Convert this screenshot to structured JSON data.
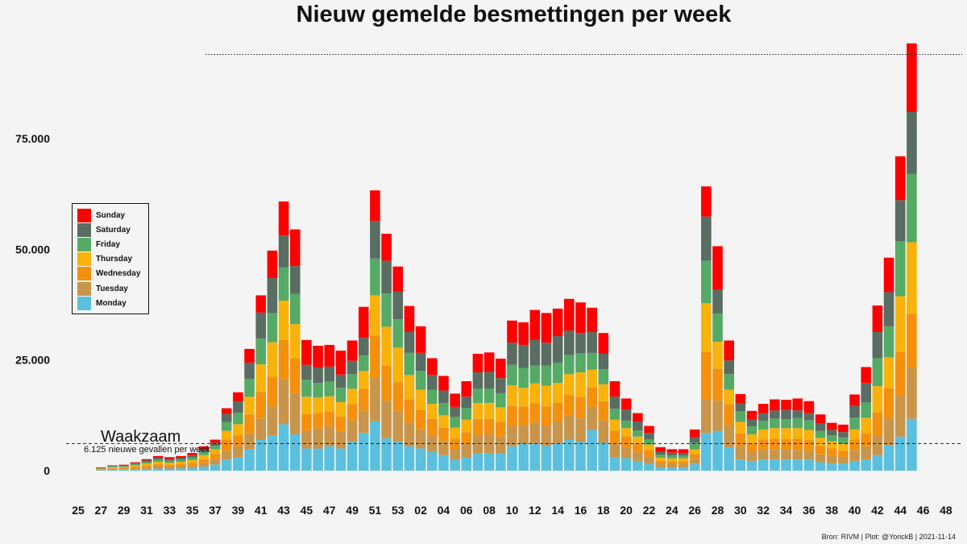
{
  "title": "Nieuw gemelde besmettingen per week",
  "caption": "Bron: RIVM | Plot: @YorickB |  2021-11-14",
  "threshold": {
    "label": "Waakzaam",
    "sublabel": "6.125 nieuwe gevallen per week",
    "value": 6125
  },
  "chart_data": {
    "type": "bar",
    "stacked": true,
    "title": "Nieuw gemelde besmettingen per week",
    "xlabel": "",
    "ylabel": "",
    "ylim": [
      0,
      94000
    ],
    "yticks": [
      0,
      25000,
      50000,
      75000
    ],
    "ytick_labels": [
      "0",
      "25.000",
      "50.000",
      "75.000"
    ],
    "xticks": [
      "25",
      "27",
      "29",
      "31",
      "33",
      "35",
      "37",
      "39",
      "41",
      "43",
      "45",
      "47",
      "49",
      "51",
      "53",
      "02",
      "04",
      "06",
      "08",
      "10",
      "12",
      "14",
      "16",
      "18",
      "20",
      "22",
      "24",
      "26",
      "28",
      "30",
      "32",
      "34",
      "36",
      "38",
      "40",
      "42",
      "44",
      "46",
      "48"
    ],
    "grid": false,
    "legend_position": "left",
    "reference_lines": [
      {
        "value": 6125,
        "style": "dashed",
        "label": "Waakzaam"
      },
      {
        "value": 94000,
        "style": "dotted"
      }
    ],
    "categories": [
      "27",
      "28",
      "29",
      "30",
      "31",
      "32",
      "33",
      "34",
      "35",
      "36",
      "37",
      "38",
      "39",
      "40",
      "41",
      "42",
      "43",
      "44",
      "45",
      "46",
      "47",
      "48",
      "49",
      "50",
      "51",
      "52",
      "53",
      "01",
      "02",
      "03",
      "04",
      "05",
      "06",
      "07",
      "08",
      "09",
      "10",
      "11",
      "12",
      "13",
      "14",
      "15",
      "16",
      "17",
      "18",
      "19",
      "20",
      "21",
      "22",
      "23",
      "24",
      "25",
      "26",
      "27",
      "28",
      "29",
      "30",
      "31",
      "32",
      "33",
      "34",
      "35",
      "36",
      "37",
      "38",
      "39",
      "40",
      "41",
      "42",
      "43",
      "44",
      "45"
    ],
    "series": [
      {
        "name": "Monday",
        "color": "#5bc0de",
        "values": [
          100,
          200,
          220,
          300,
          400,
          500,
          450,
          500,
          600,
          900,
          1400,
          2500,
          3000,
          4800,
          7000,
          8000,
          10500,
          8200,
          5000,
          5000,
          5500,
          5000,
          6500,
          8500,
          11200,
          7300,
          6500,
          5500,
          5000,
          4200,
          3500,
          2400,
          3000,
          4000,
          4000,
          4000,
          5500,
          6000,
          6000,
          5600,
          6200,
          7000,
          6500,
          9200,
          6300,
          3000,
          2800,
          2200,
          1500,
          700,
          700,
          700,
          1500,
          8500,
          9000,
          5200,
          2500,
          2200,
          2500,
          2500,
          2500,
          2500,
          2400,
          1900,
          1600,
          1600,
          2200,
          2500,
          3500,
          5800,
          7700,
          11700
        ]
      },
      {
        "name": "Tuesday",
        "color": "#c8954a",
        "values": [
          150,
          200,
          220,
          300,
          400,
          500,
          450,
          500,
          600,
          800,
          1200,
          2000,
          2500,
          3700,
          4800,
          6500,
          10200,
          9300,
          4000,
          4500,
          4500,
          3800,
          4800,
          5000,
          9700,
          8500,
          7000,
          5400,
          4300,
          3700,
          3200,
          2500,
          3000,
          4100,
          4200,
          3700,
          4500,
          4300,
          4800,
          4500,
          4900,
          5500,
          5300,
          5200,
          5000,
          3000,
          2500,
          2000,
          1600,
          750,
          750,
          750,
          1200,
          7600,
          6800,
          5000,
          3000,
          2000,
          2200,
          2200,
          2300,
          2200,
          2100,
          1800,
          1700,
          1500,
          2400,
          3000,
          4500,
          6100,
          9200,
          11400
        ]
      },
      {
        "name": "Wednesday",
        "color": "#f5900d",
        "values": [
          100,
          200,
          200,
          300,
          400,
          500,
          450,
          500,
          600,
          900,
          1200,
          2500,
          2500,
          4200,
          6000,
          6700,
          8800,
          7800,
          3800,
          3500,
          3400,
          3400,
          3700,
          5000,
          9600,
          7900,
          6500,
          5200,
          4500,
          3800,
          3000,
          2300,
          2700,
          3600,
          3500,
          3300,
          4600,
          4200,
          4400,
          4400,
          4200,
          4600,
          4900,
          4400,
          4400,
          3000,
          2500,
          2000,
          1600,
          800,
          700,
          700,
          1100,
          10700,
          7200,
          4800,
          2900,
          2000,
          2300,
          2500,
          2300,
          2500,
          2400,
          1900,
          1700,
          1400,
          2400,
          3000,
          5100,
          6700,
          10000,
          12300
        ]
      },
      {
        "name": "Thursday",
        "color": "#f8b20a",
        "values": [
          100,
          200,
          200,
          300,
          400,
          500,
          450,
          500,
          600,
          900,
          1000,
          2000,
          2500,
          4000,
          6200,
          7800,
          8900,
          7800,
          3900,
          3500,
          3400,
          3300,
          3500,
          4000,
          9100,
          8800,
          7800,
          5500,
          4500,
          3400,
          2800,
          2500,
          2800,
          3600,
          3600,
          3300,
          4700,
          4200,
          4500,
          4700,
          4500,
          4700,
          5500,
          4000,
          3800,
          2500,
          1800,
          1500,
          1200,
          650,
          600,
          650,
          1000,
          11000,
          6100,
          3300,
          2600,
          2000,
          2300,
          2400,
          2500,
          2400,
          2300,
          1800,
          1600,
          1500,
          2300,
          3400,
          6000,
          7000,
          12500,
          16200
        ]
      },
      {
        "name": "Friday",
        "color": "#55aa66",
        "values": [
          100,
          150,
          200,
          300,
          400,
          500,
          450,
          500,
          600,
          800,
          800,
          2000,
          2600,
          4000,
          5800,
          6600,
          7500,
          6800,
          3800,
          3300,
          3400,
          3200,
          3300,
          3500,
          8300,
          7500,
          6400,
          5000,
          4200,
          3200,
          2800,
          2500,
          2700,
          3200,
          3200,
          3200,
          4600,
          4500,
          4000,
          4500,
          4600,
          4300,
          4300,
          3800,
          3400,
          2500,
          1700,
          1400,
          1200,
          700,
          700,
          600,
          1500,
          9600,
          6400,
          3500,
          2400,
          1800,
          2000,
          2200,
          2000,
          2300,
          2200,
          1600,
          1400,
          1500,
          2700,
          3500,
          6300,
          7000,
          12400,
          15400
        ]
      },
      {
        "name": "Saturday",
        "color": "#5a6d62",
        "values": [
          100,
          150,
          150,
          200,
          300,
          400,
          400,
          400,
          500,
          600,
          700,
          1800,
          2500,
          3700,
          5900,
          7900,
          7200,
          6300,
          3400,
          3500,
          3300,
          3000,
          3000,
          4000,
          8500,
          7400,
          6300,
          4800,
          4100,
          3300,
          2800,
          2200,
          2500,
          3700,
          3800,
          3400,
          5000,
          5200,
          5800,
          5200,
          6000,
          5500,
          4600,
          4700,
          3500,
          2700,
          2500,
          2000,
          1400,
          600,
          600,
          550,
          1200,
          10000,
          5300,
          3100,
          1800,
          1500,
          1600,
          1800,
          2100,
          1700,
          1600,
          1600,
          1200,
          1200,
          2600,
          4400,
          5900,
          7700,
          9300,
          14000
        ]
      },
      {
        "name": "Sunday",
        "color": "#ff0000",
        "values": [
          100,
          100,
          150,
          200,
          300,
          400,
          400,
          400,
          500,
          600,
          700,
          1300,
          2100,
          3100,
          3900,
          6200,
          7700,
          8300,
          5600,
          4900,
          4900,
          5400,
          4600,
          7000,
          6900,
          6100,
          5600,
          5800,
          6000,
          3800,
          3300,
          3000,
          3500,
          4200,
          4400,
          4400,
          5000,
          5100,
          6800,
          6700,
          6200,
          7200,
          6900,
          5500,
          4700,
          3500,
          2500,
          1900,
          1600,
          1100,
          800,
          900,
          1800,
          6800,
          9900,
          4500,
          2100,
          2000,
          2200,
          2500,
          2300,
          2700,
          2700,
          2100,
          1600,
          1700,
          2600,
          3600,
          6000,
          7800,
          9900,
          15500
        ]
      }
    ]
  }
}
